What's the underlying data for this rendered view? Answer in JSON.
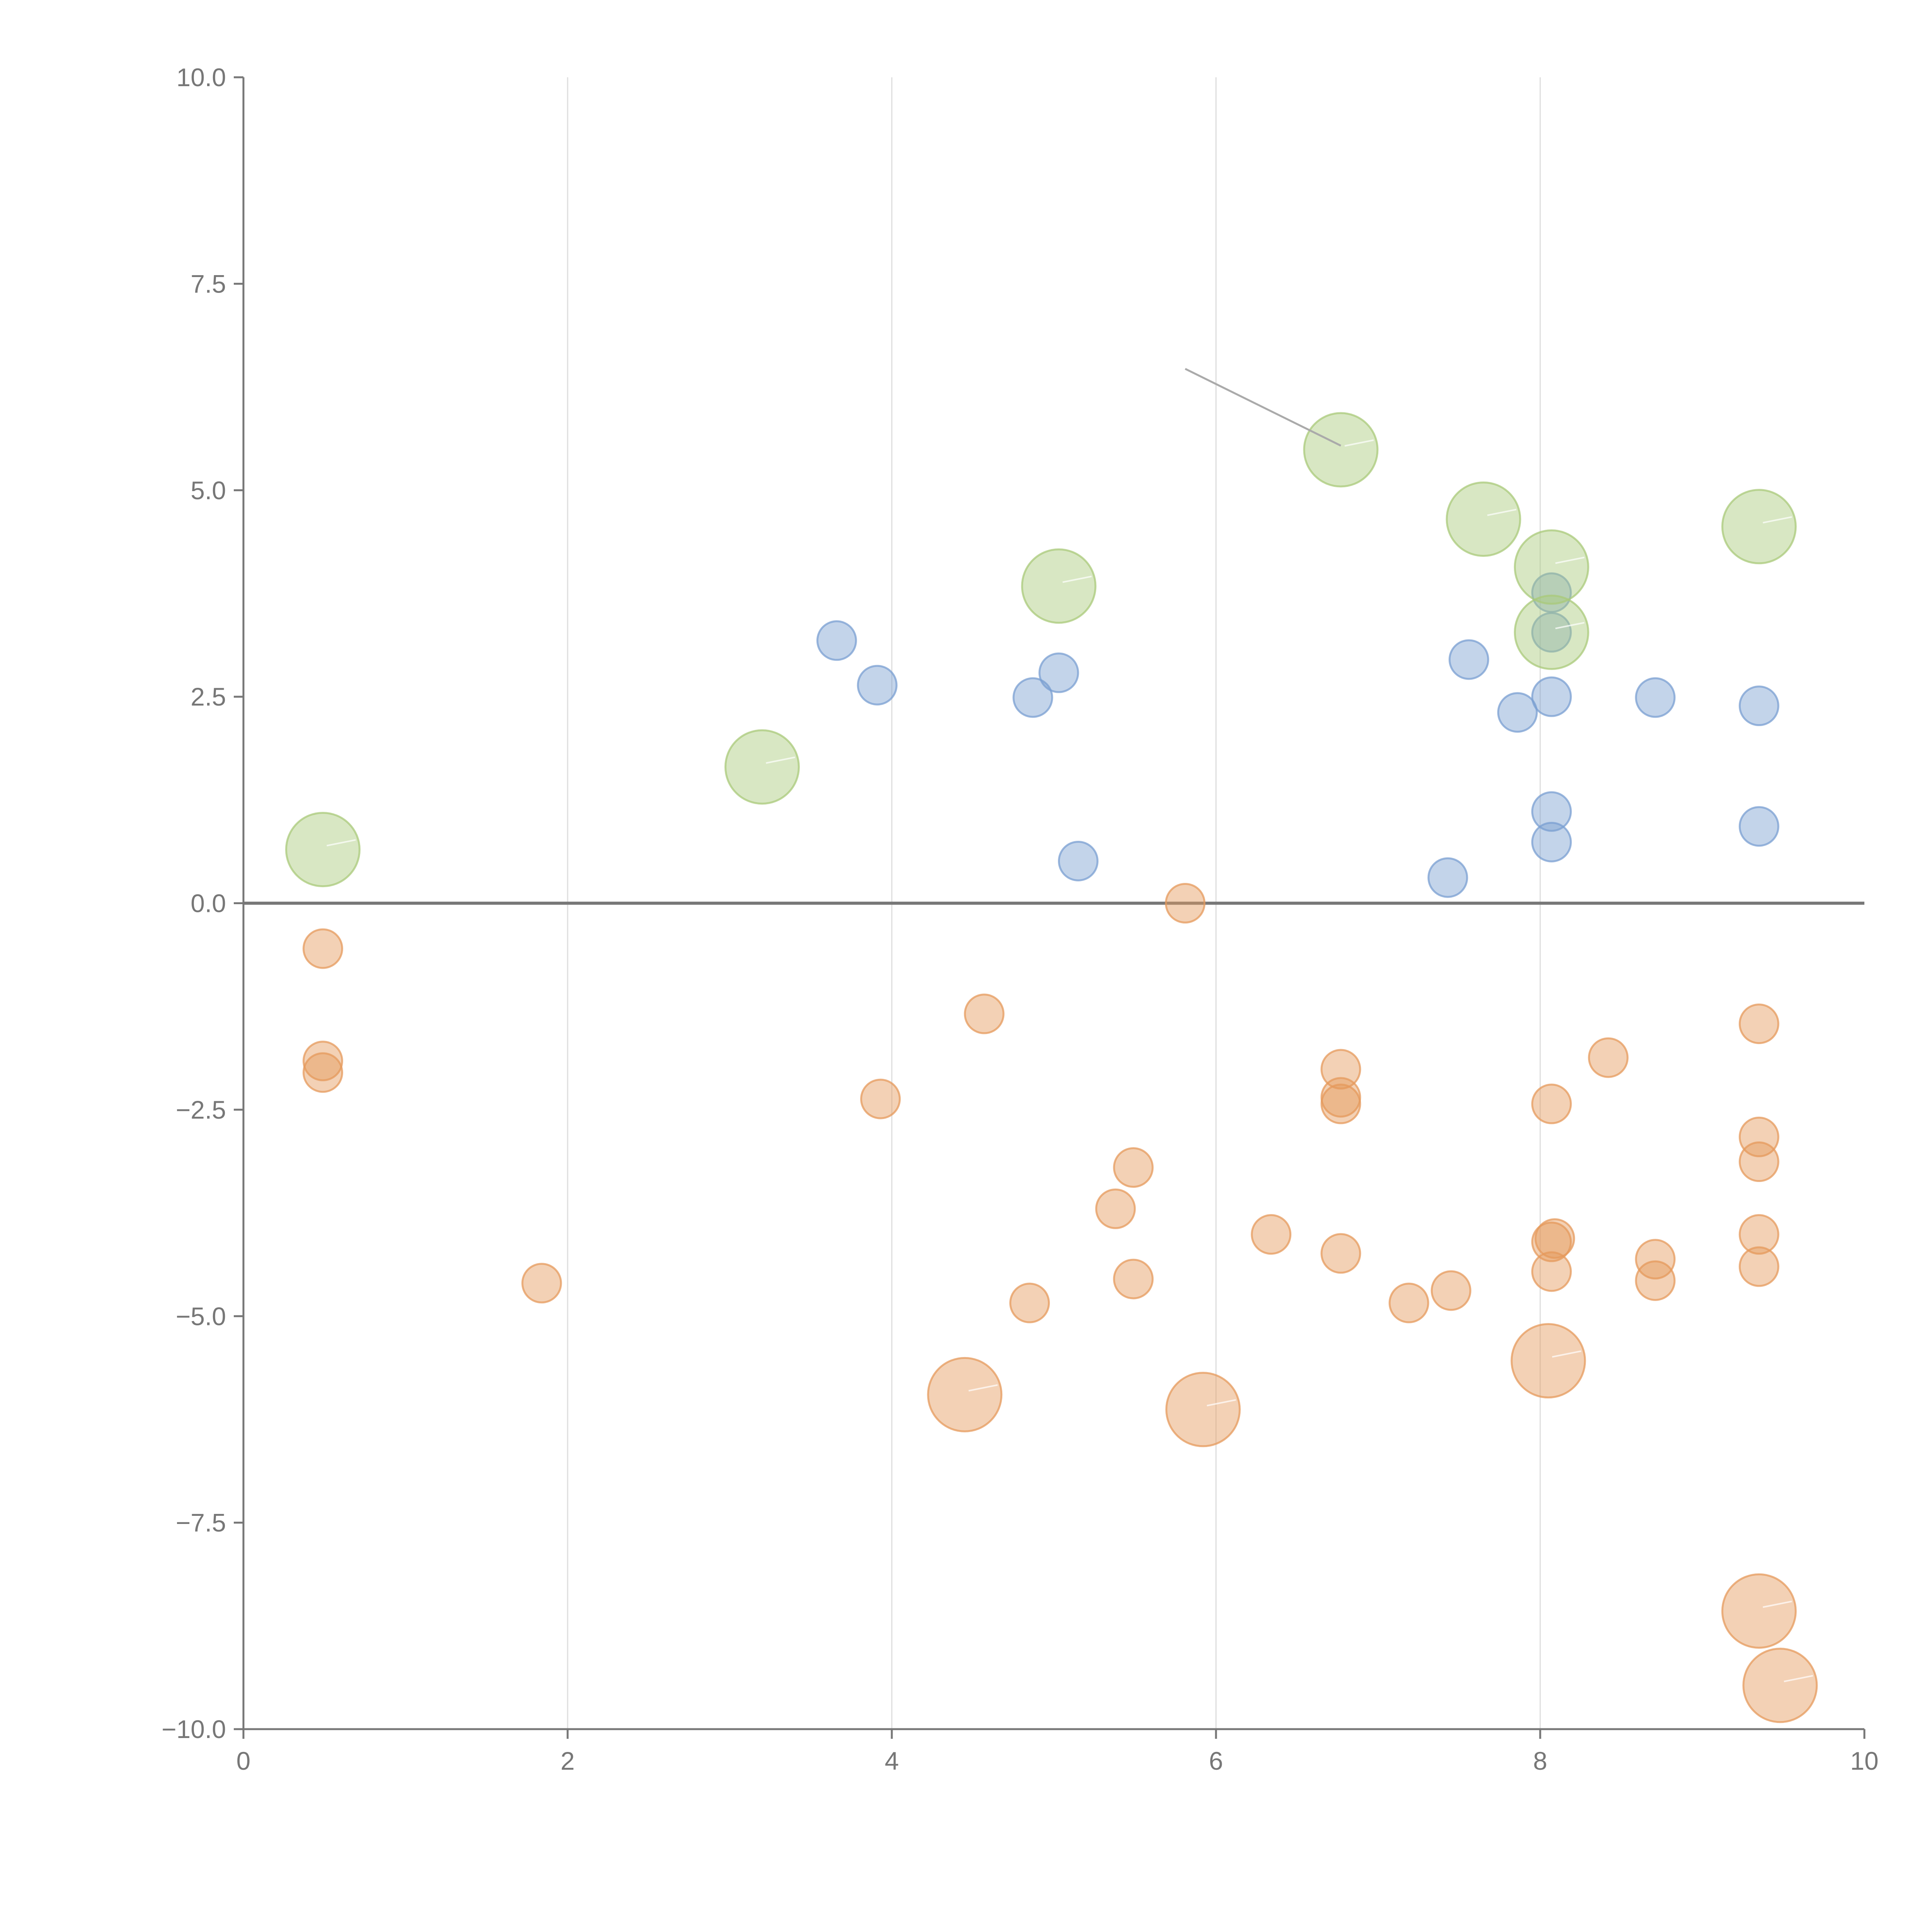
{
  "chart_data": {
    "type": "scatter",
    "title": "",
    "xlabel": "",
    "ylabel": "",
    "xlim": [
      0,
      10
    ],
    "ylim": [
      -10,
      10
    ],
    "x_ticks": [
      0,
      2,
      4,
      6,
      8,
      10
    ],
    "x_tick_labels": [
      "0",
      "2",
      "4",
      "6",
      "8",
      "10"
    ],
    "y_ticks": [
      10,
      7.5,
      5,
      2.5,
      0,
      -2.5,
      -5,
      -7.5,
      -10
    ],
    "y_tick_labels": [
      "10.0",
      "7.5",
      "5.0",
      "2.5",
      "0.0",
      "−2.5",
      "−5.0",
      "−7.5",
      "−10.0"
    ],
    "grid": "vertical",
    "reference_line_y": 0,
    "colors": {
      "blue": "#7a9fd1",
      "orange": "#e59a5c",
      "green": "#a9c97a",
      "axis": "#777777",
      "grid": "#dddddd"
    },
    "series": [
      {
        "name": "blue",
        "color": "#7a9fd1",
        "size": "small",
        "points": [
          {
            "x": 3.66,
            "y": 3.18
          },
          {
            "x": 3.91,
            "y": 2.64
          },
          {
            "x": 4.87,
            "y": 2.49
          },
          {
            "x": 5.03,
            "y": 2.79
          },
          {
            "x": 5.15,
            "y": 0.51
          },
          {
            "x": 7.43,
            "y": 0.31
          },
          {
            "x": 7.56,
            "y": 2.95
          },
          {
            "x": 7.86,
            "y": 2.31
          },
          {
            "x": 8.07,
            "y": 3.76
          },
          {
            "x": 8.07,
            "y": 3.28
          },
          {
            "x": 8.07,
            "y": 2.5
          },
          {
            "x": 8.07,
            "y": 1.11
          },
          {
            "x": 8.07,
            "y": 0.74
          },
          {
            "x": 8.71,
            "y": 2.49
          },
          {
            "x": 9.35,
            "y": 2.39
          },
          {
            "x": 9.35,
            "y": 0.93
          }
        ]
      },
      {
        "name": "orange",
        "color": "#e59a5c",
        "points": [
          {
            "x": 0.49,
            "y": -0.55,
            "size": "small"
          },
          {
            "x": 0.49,
            "y": -1.91,
            "size": "small"
          },
          {
            "x": 0.49,
            "y": -2.05,
            "size": "small"
          },
          {
            "x": 1.84,
            "y": -4.6,
            "size": "small"
          },
          {
            "x": 3.93,
            "y": -2.37,
            "size": "small"
          },
          {
            "x": 4.57,
            "y": -1.34,
            "size": "small"
          },
          {
            "x": 4.45,
            "y": -5.95,
            "size": "large"
          },
          {
            "x": 4.85,
            "y": -4.84,
            "size": "small"
          },
          {
            "x": 5.38,
            "y": -3.7,
            "size": "small"
          },
          {
            "x": 5.49,
            "y": -3.2,
            "size": "small"
          },
          {
            "x": 5.49,
            "y": -4.55,
            "size": "small"
          },
          {
            "x": 5.81,
            "y": 0.0,
            "size": "small"
          },
          {
            "x": 5.92,
            "y": -6.13,
            "size": "large"
          },
          {
            "x": 6.34,
            "y": -4.01,
            "size": "small"
          },
          {
            "x": 6.77,
            "y": -2.01,
            "size": "small"
          },
          {
            "x": 6.77,
            "y": -2.35,
            "size": "small"
          },
          {
            "x": 6.77,
            "y": -2.43,
            "size": "small"
          },
          {
            "x": 6.77,
            "y": -4.24,
            "size": "small"
          },
          {
            "x": 7.19,
            "y": -4.84,
            "size": "small"
          },
          {
            "x": 7.45,
            "y": -4.69,
            "size": "small"
          },
          {
            "x": 8.07,
            "y": -2.43,
            "size": "small"
          },
          {
            "x": 8.07,
            "y": -4.1,
            "size": "small"
          },
          {
            "x": 8.09,
            "y": -4.06,
            "size": "small"
          },
          {
            "x": 8.07,
            "y": -4.46,
            "size": "small"
          },
          {
            "x": 8.05,
            "y": -5.54,
            "size": "large"
          },
          {
            "x": 8.42,
            "y": -1.87,
            "size": "small"
          },
          {
            "x": 8.71,
            "y": -4.31,
            "size": "small"
          },
          {
            "x": 8.71,
            "y": -4.57,
            "size": "small"
          },
          {
            "x": 9.35,
            "y": -1.46,
            "size": "small"
          },
          {
            "x": 9.35,
            "y": -2.83,
            "size": "small"
          },
          {
            "x": 9.35,
            "y": -3.13,
            "size": "small"
          },
          {
            "x": 9.35,
            "y": -4.01,
            "size": "small"
          },
          {
            "x": 9.35,
            "y": -4.4,
            "size": "small"
          },
          {
            "x": 9.35,
            "y": -8.57,
            "size": "large"
          },
          {
            "x": 9.48,
            "y": -9.47,
            "size": "large"
          }
        ]
      },
      {
        "name": "green",
        "color": "#a9c97a",
        "size": "large",
        "points": [
          {
            "x": 0.49,
            "y": 0.65
          },
          {
            "x": 3.2,
            "y": 1.65
          },
          {
            "x": 5.03,
            "y": 3.84
          },
          {
            "x": 6.77,
            "y": 5.49
          },
          {
            "x": 7.65,
            "y": 4.65
          },
          {
            "x": 8.07,
            "y": 4.07
          },
          {
            "x": 8.07,
            "y": 3.28
          },
          {
            "x": 9.35,
            "y": 4.56
          }
        ]
      }
    ],
    "annotation_line": {
      "x1": 5.81,
      "y1": 6.47,
      "x2": 6.77,
      "y2": 5.54
    }
  }
}
